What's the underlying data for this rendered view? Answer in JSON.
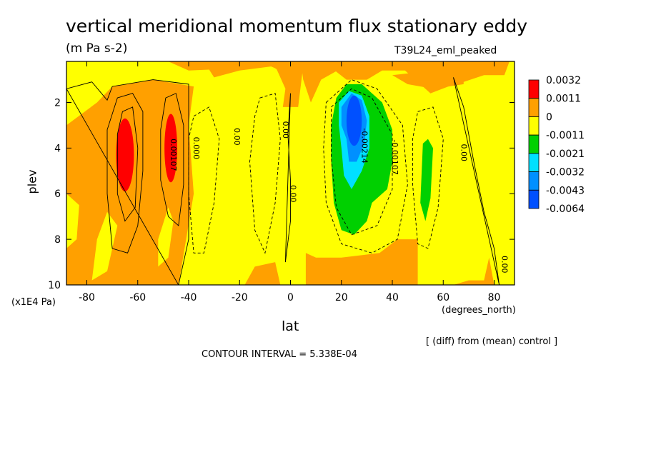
{
  "title": "vertical meridional momentum flux stationary eddy",
  "units": "(m Pa s-2)",
  "run_id": "T39L24_eml_peaked",
  "y_axis_label": "plev",
  "y_axis_units": "(x1E4 Pa)",
  "x_axis_label": "lat",
  "x_axis_units": "(degrees_north)",
  "diff_note": "[ (diff) from (mean) control ]",
  "contour_interval": "CONTOUR INTERVAL = 5.338E-04",
  "colors": {
    "red": "#ff0000",
    "orange": "#ffa000",
    "yellow": "#ffff00",
    "green": "#00d000",
    "cyan": "#00e0ff",
    "blue": "#0090ff",
    "dark_blue": "#0050ff"
  },
  "chart_data": {
    "type": "heatmap",
    "title": "vertical meridional momentum flux stationary eddy",
    "subtitle": "(m Pa s-2)",
    "xlabel": "lat",
    "ylabel": "plev",
    "xlim": [
      -88,
      88
    ],
    "ylim": [
      10,
      0.2
    ],
    "x_ticks": [
      -80,
      -60,
      -40,
      -20,
      0,
      20,
      40,
      60,
      80
    ],
    "y_ticks": [
      2,
      4,
      6,
      8,
      10
    ],
    "colorbar": {
      "levels": [
        "0.0032",
        "0.0011",
        "0",
        "-0.0011",
        "-0.0021",
        "-0.0032",
        "-0.0043",
        "-0.0064"
      ],
      "colors": [
        "#ff0000",
        "#ffa000",
        "#ffff00",
        "#00d000",
        "#00e0ff",
        "#0090ff",
        "#0050ff"
      ]
    },
    "contour_labels": [
      {
        "text": "0.00107",
        "x": -47,
        "y": 4.3
      },
      {
        "text": "0.000",
        "x": -38,
        "y": 4.0
      },
      {
        "text": "0.00",
        "x": -22,
        "y": 3.5
      },
      {
        "text": "0.00",
        "x": -3,
        "y": 3.2
      },
      {
        "text": "0.00",
        "x": 0,
        "y": 6.0
      },
      {
        "text": "-0.00214",
        "x": 28,
        "y": 3.9
      },
      {
        "text": "-0.00107",
        "x": 40,
        "y": 4.4
      },
      {
        "text": "0.00",
        "x": 67,
        "y": 4.2
      },
      {
        "text": "0.00",
        "x": 83,
        "y": 9.1
      }
    ],
    "regions": [
      {
        "level": "0.0032",
        "color": "red",
        "center_lat": -65,
        "center_plev": 4.3
      },
      {
        "level": "0.0032",
        "color": "red",
        "center_lat": -47,
        "center_plev": 4.0
      },
      {
        "level": "-0.0011",
        "color": "green",
        "center_lat": 28,
        "center_plev": 4.5
      },
      {
        "level": "-0.0032",
        "color": "cyan",
        "center_lat": 24,
        "center_plev": 4.2
      },
      {
        "level": "-0.0064",
        "color": "dark_blue",
        "center_lat": 25,
        "center_plev": 3.2
      },
      {
        "level": "-0.0011",
        "color": "green",
        "center_lat": 53,
        "center_plev": 5.5
      }
    ]
  }
}
